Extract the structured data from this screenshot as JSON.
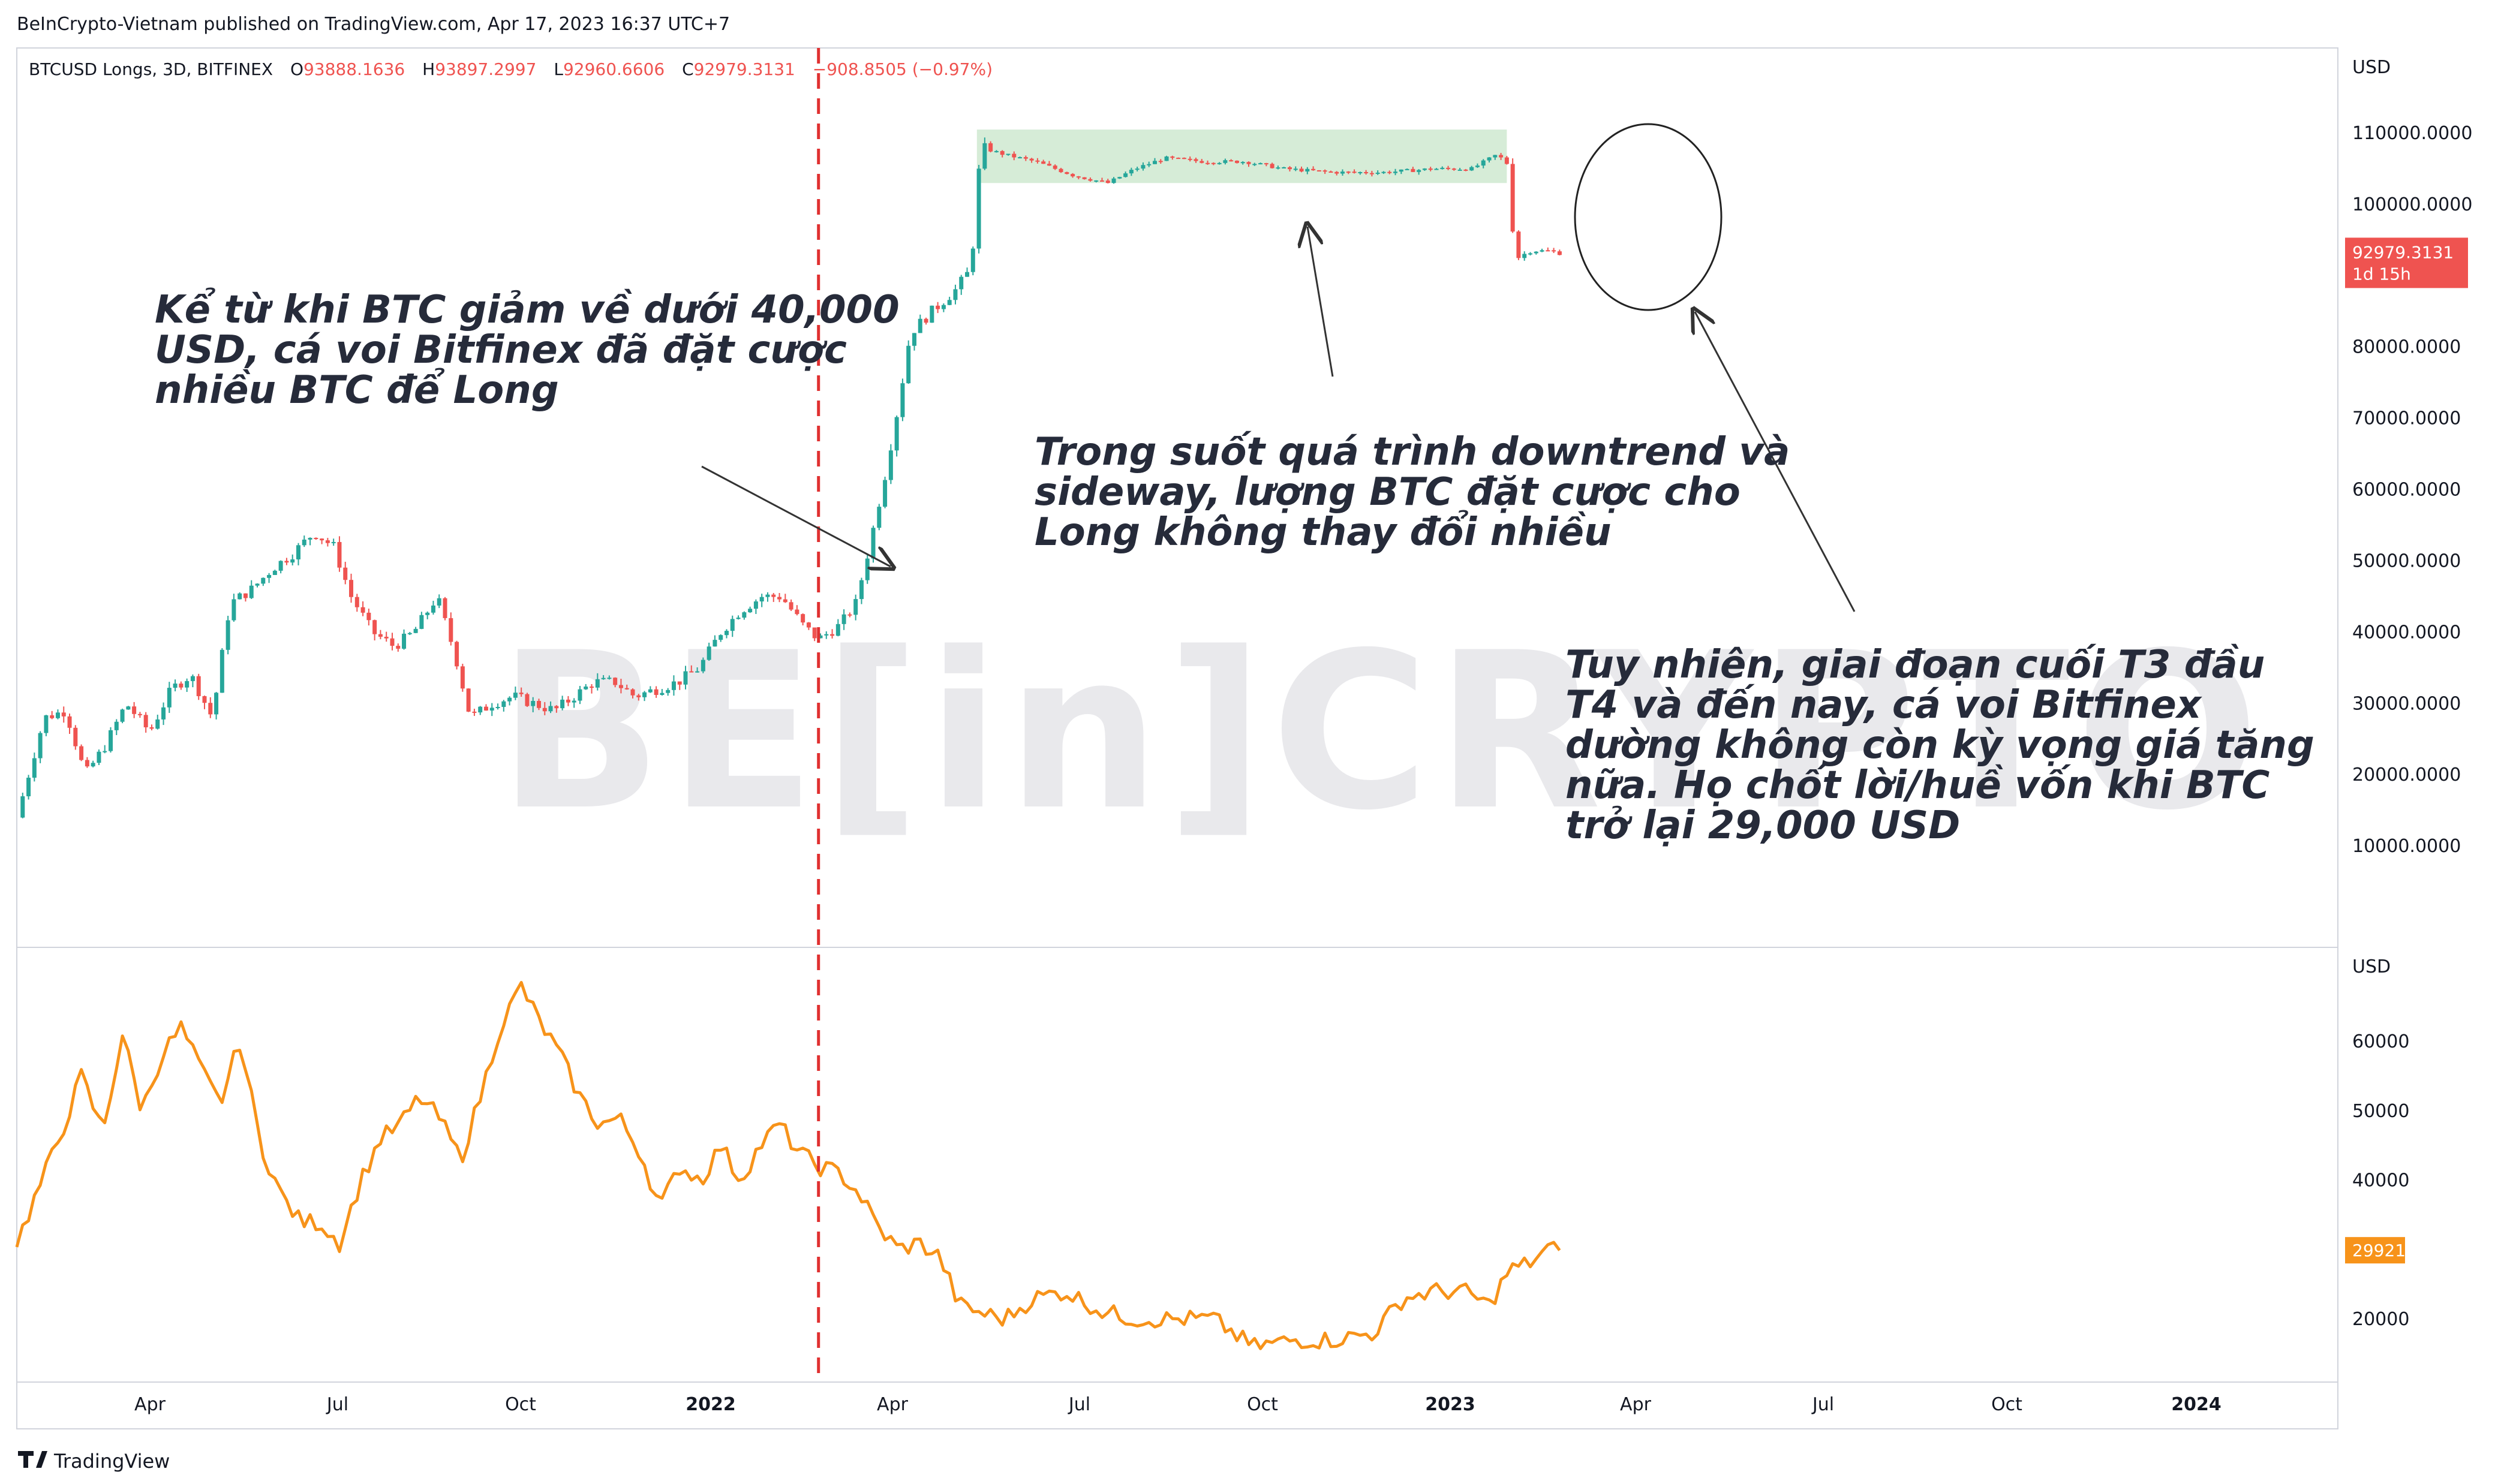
{
  "header": {
    "publisher": "BeInCrypto-Vietnam published on TradingView.com, Apr 17, 2023 16:37 UTC+7"
  },
  "legend": {
    "symbol": "BTCUSD Longs, 3D, BITFINEX",
    "o_label": "O",
    "o_value": "93888.1636",
    "h_label": "H",
    "h_value": "93897.2997",
    "l_label": "L",
    "l_value": "92960.6606",
    "c_label": "C",
    "c_value": "92979.3131",
    "change": "−908.8505 (−0.97%)"
  },
  "price_badge": {
    "value": "92979.3131",
    "countdown": "1d 15h"
  },
  "lower_badge": {
    "value": "29921"
  },
  "annotations": {
    "a1": [
      "Kể từ khi BTC giảm về dưới 40,000",
      "USD, cá voi Bitfinex đã đặt cược",
      "nhiều BTC để Long"
    ],
    "a2": [
      "Trong suốt quá trình downtrend và",
      "sideway, lượng BTC đặt cược cho",
      "Long không thay đổi nhiều"
    ],
    "a3": [
      "Tuy nhiên, giai đoạn cuối T3 đầu",
      "T4 và đến nay, cá voi Bitfinex",
      "dường không còn kỳ vọng giá tăng",
      "nữa. Họ chốt lời/huề vốn khi BTC",
      "trở lại 29,000 USD"
    ]
  },
  "watermark": "BE[in]CRYPTO",
  "brand": "TradingView",
  "colors": {
    "up": "#26a69a",
    "down": "#ef5350",
    "line": "#f7931a",
    "zone": "#c8e6c9",
    "dashed": "#e03030",
    "grid": "#e0e3eb"
  },
  "chart_data": [
    {
      "type": "candlestick",
      "title": "BTCUSD Longs, 3D, BITFINEX",
      "ylabel": "USD",
      "ylim": [
        0,
        120000
      ],
      "y_ticks": [
        "110000.0000",
        "100000.0000",
        "90000.0000",
        "80000.0000",
        "70000.0000",
        "60000.0000",
        "50000.0000",
        "40000.0000",
        "30000.0000",
        "20000.0000",
        "10000.0000"
      ],
      "x_ticks": [
        "Apr",
        "Jul",
        "Oct",
        "2022",
        "Apr",
        "Jul",
        "Oct",
        "2023",
        "Apr",
        "Jul",
        "Oct",
        "2024"
      ],
      "x_range": [
        "2021-02-15",
        "2024-03-05"
      ],
      "series": [
        {
          "points": [
            [
              "2021-02-15",
              14000
            ],
            [
              "2021-03-01",
              28000
            ],
            [
              "2021-03-12",
              29000
            ],
            [
              "2021-03-22",
              20000
            ],
            [
              "2021-04-01",
              24000
            ],
            [
              "2021-04-12",
              30000
            ],
            [
              "2021-04-24",
              26000
            ],
            [
              "2021-05-05",
              32000
            ],
            [
              "2021-05-15",
              34000
            ],
            [
              "2021-05-26",
              28000
            ],
            [
              "2021-06-04",
              44000
            ],
            [
              "2021-06-15",
              46000
            ],
            [
              "2021-06-26",
              49000
            ],
            [
              "2021-07-06",
              51000
            ],
            [
              "2021-07-17",
              54000
            ],
            [
              "2021-07-27",
              52000
            ],
            [
              "2021-08-05",
              45000
            ],
            [
              "2021-08-16",
              40000
            ],
            [
              "2021-08-27",
              38000
            ],
            [
              "2021-09-06",
              40000
            ],
            [
              "2021-09-18",
              45000
            ],
            [
              "2021-09-27",
              37000
            ],
            [
              "2021-10-05",
              28000
            ],
            [
              "2021-10-16",
              30000
            ],
            [
              "2021-10-27",
              31000
            ],
            [
              "2021-11-06",
              30000
            ],
            [
              "2021-11-17",
              29000
            ],
            [
              "2021-11-27",
              31000
            ],
            [
              "2021-12-07",
              33000
            ],
            [
              "2021-12-18",
              33000
            ],
            [
              "2021-12-28",
              31000
            ],
            [
              "2022-01-08",
              32000
            ],
            [
              "2022-01-19",
              33000
            ],
            [
              "2022-01-30",
              35000
            ],
            [
              "2022-02-10",
              40000
            ],
            [
              "2022-02-20",
              43000
            ],
            [
              "2022-03-03",
              45000
            ],
            [
              "2022-03-13",
              45000
            ],
            [
              "2022-03-24",
              41000
            ],
            [
              "2022-04-01",
              39000
            ],
            [
              "2022-04-12",
              41000
            ],
            [
              "2022-04-20",
              44000
            ],
            [
              "2022-04-27",
              52000
            ],
            [
              "2022-05-05",
              62000
            ],
            [
              "2022-05-12",
              72000
            ],
            [
              "2022-05-18",
              82000
            ],
            [
              "2022-05-29",
              85000
            ],
            [
              "2022-06-10",
              88000
            ],
            [
              "2022-06-18",
              91000
            ],
            [
              "2022-06-23",
              108000
            ],
            [
              "2022-07-05",
              107000
            ],
            [
              "2022-07-21",
              106000
            ],
            [
              "2022-08-10",
              104000
            ],
            [
              "2022-08-27",
              103000
            ],
            [
              "2022-09-10",
              105000
            ],
            [
              "2022-09-25",
              106500
            ],
            [
              "2022-10-15",
              106000
            ],
            [
              "2022-11-05",
              106000
            ],
            [
              "2022-11-25",
              105000
            ],
            [
              "2022-12-20",
              104500
            ],
            [
              "2023-01-15",
              104500
            ],
            [
              "2023-02-10",
              105000
            ],
            [
              "2023-03-01",
              105000
            ],
            [
              "2023-03-14",
              107000
            ],
            [
              "2023-03-20",
              105500
            ],
            [
              "2023-03-23",
              92500
            ],
            [
              "2023-04-01",
              93500
            ],
            [
              "2023-04-10",
              93500
            ],
            [
              "2023-04-17",
              93000
            ]
          ]
        }
      ],
      "range_box": {
        "from": "2022-06-21",
        "to": "2023-03-19",
        "low": 103000,
        "high": 110500
      }
    },
    {
      "type": "line",
      "ylabel": "USD",
      "ylim": [
        14000,
        70000
      ],
      "y_ticks": [
        "60000",
        "50000",
        "40000",
        "20000"
      ],
      "series": [
        {
          "points": [
            [
              "2021-02-15",
              31000
            ],
            [
              "2021-02-28",
              40000
            ],
            [
              "2021-03-10",
              47000
            ],
            [
              "2021-03-20",
              55000
            ],
            [
              "2021-03-31",
              47000
            ],
            [
              "2021-04-10",
              61000
            ],
            [
              "2021-04-20",
              50000
            ],
            [
              "2021-04-30",
              58000
            ],
            [
              "2021-05-10",
              62000
            ],
            [
              "2021-05-20",
              56000
            ],
            [
              "2021-05-30",
              51000
            ],
            [
              "2021-06-09",
              60000
            ],
            [
              "2021-06-20",
              45000
            ],
            [
              "2021-06-30",
              38000
            ],
            [
              "2021-07-10",
              34000
            ],
            [
              "2021-07-20",
              34000
            ],
            [
              "2021-07-30",
              31000
            ],
            [
              "2021-08-10",
              40000
            ],
            [
              "2021-08-20",
              46000
            ],
            [
              "2021-08-30",
              48000
            ],
            [
              "2021-09-09",
              52000
            ],
            [
              "2021-09-19",
              49000
            ],
            [
              "2021-09-30",
              43000
            ],
            [
              "2021-10-10",
              52000
            ],
            [
              "2021-10-20",
              62000
            ],
            [
              "2021-10-31",
              68000
            ],
            [
              "2021-11-09",
              63000
            ],
            [
              "2021-11-20",
              58000
            ],
            [
              "2021-11-30",
              52000
            ],
            [
              "2021-12-10",
              48000
            ],
            [
              "2021-12-20",
              49000
            ],
            [
              "2021-12-31",
              44000
            ],
            [
              "2022-01-10",
              36000
            ],
            [
              "2022-01-20",
              42000
            ],
            [
              "2022-01-31",
              40000
            ],
            [
              "2022-02-10",
              45000
            ],
            [
              "2022-02-20",
              40000
            ],
            [
              "2022-03-02",
              45000
            ],
            [
              "2022-03-12",
              48000
            ],
            [
              "2022-03-22",
              44000
            ],
            [
              "2022-04-01",
              42000
            ],
            [
              "2022-04-12",
              41000
            ],
            [
              "2022-04-22",
              38000
            ],
            [
              "2022-05-02",
              33000
            ],
            [
              "2022-05-12",
              30000
            ],
            [
              "2022-05-22",
              31000
            ],
            [
              "2022-06-02",
              29000
            ],
            [
              "2022-06-12",
              22000
            ],
            [
              "2022-06-22",
              21000
            ],
            [
              "2022-07-05",
              20000
            ],
            [
              "2022-07-20",
              23000
            ],
            [
              "2022-08-05",
              24000
            ],
            [
              "2022-08-25",
              21000
            ],
            [
              "2022-09-10",
              20000
            ],
            [
              "2022-10-01",
              20000
            ],
            [
              "2022-10-20",
              20000
            ],
            [
              "2022-11-09",
              16000
            ],
            [
              "2022-11-30",
              17000
            ],
            [
              "2022-12-20",
              17000
            ],
            [
              "2023-01-10",
              18000
            ],
            [
              "2023-01-25",
              23000
            ],
            [
              "2023-02-10",
              24000
            ],
            [
              "2023-02-25",
              24000
            ],
            [
              "2023-03-10",
              22000
            ],
            [
              "2023-03-20",
              27000
            ],
            [
              "2023-03-30",
              28000
            ],
            [
              "2023-04-09",
              30000
            ],
            [
              "2023-04-17",
              29921
            ]
          ]
        }
      ]
    }
  ]
}
